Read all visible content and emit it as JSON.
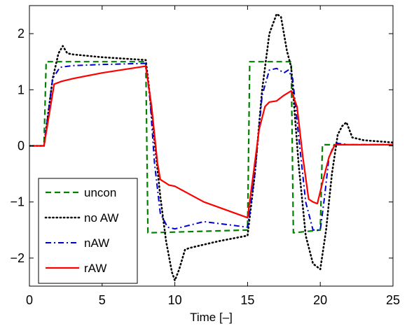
{
  "chart_data": {
    "type": "line",
    "title": "",
    "xlabel": "Time [–]",
    "ylabel": "",
    "xlim": [
      0,
      25
    ],
    "ylim": [
      -2.5,
      2.5
    ],
    "xticks": [
      0,
      5,
      10,
      15,
      20,
      25
    ],
    "yticks": [
      -2,
      -1,
      0,
      1,
      2
    ],
    "xtick_labels": [
      "0",
      "5",
      "10",
      "15",
      "20",
      "25"
    ],
    "ytick_labels": [
      "−2",
      "−1",
      "0",
      "1",
      "2"
    ],
    "grid": false,
    "legend": {
      "position": "bottom-left"
    },
    "series": [
      {
        "name": "uncon",
        "color": "#008000",
        "style": "dashed",
        "x": [
          0,
          1,
          1.15,
          8,
          8.15,
          15,
          15.15,
          18,
          18.15,
          20,
          20.15,
          25
        ],
        "y": [
          0,
          0,
          1.5,
          1.5,
          -1.55,
          -1.5,
          1.5,
          1.5,
          -1.55,
          -1.5,
          0.02,
          0.02
        ]
      },
      {
        "name": "no AW",
        "color": "#000000",
        "style": "dotted",
        "x": [
          0,
          1.0,
          1.6,
          2.0,
          2.3,
          2.6,
          3,
          5,
          8,
          8.2,
          8.6,
          9.0,
          9.4,
          9.8,
          10.0,
          10.3,
          10.7,
          11.0,
          13,
          15,
          15.5,
          16.0,
          16.5,
          17.0,
          17.3,
          17.7,
          18.0,
          18.5,
          19.0,
          19.5,
          20.0,
          20.4,
          20.8,
          21.2,
          21.5,
          21.8,
          22.2,
          23,
          25
        ],
        "y": [
          0,
          0,
          1.2,
          1.65,
          1.78,
          1.65,
          1.63,
          1.58,
          1.53,
          1.1,
          0.1,
          -0.9,
          -1.7,
          -2.25,
          -2.4,
          -2.2,
          -1.85,
          -1.82,
          -1.7,
          -1.6,
          -0.5,
          1.0,
          2.0,
          2.35,
          2.3,
          1.7,
          1.4,
          -0.3,
          -1.6,
          -2.1,
          -2.2,
          -1.5,
          -0.5,
          0.2,
          0.35,
          0.42,
          0.15,
          0.1,
          0.06
        ]
      },
      {
        "name": "nAW",
        "color": "#0000cc",
        "style": "dashdot",
        "x": [
          0,
          1.0,
          1.6,
          2.1,
          3,
          5,
          8,
          8.3,
          8.6,
          9.0,
          9.5,
          10.0,
          12,
          15,
          15.5,
          16.0,
          16.5,
          17.0,
          17.5,
          17.8,
          18.1,
          18.5,
          19.0,
          19.5,
          20.0,
          20.3,
          20.6,
          21.0,
          22,
          25
        ],
        "y": [
          0,
          0,
          1.2,
          1.4,
          1.43,
          1.45,
          1.47,
          0.8,
          -0.3,
          -1.2,
          -1.45,
          -1.48,
          -1.35,
          -1.45,
          -0.5,
          0.9,
          1.35,
          1.38,
          1.3,
          1.35,
          1.2,
          0.2,
          -1.0,
          -1.5,
          -1.5,
          -0.9,
          -0.2,
          0.05,
          0.02,
          0.02
        ]
      },
      {
        "name": "rAW",
        "color": "#ff0000",
        "style": "solid",
        "x": [
          0,
          1.0,
          1.7,
          2.2,
          3,
          5,
          8,
          8.4,
          8.8,
          9.0,
          9.3,
          9.6,
          10,
          12,
          15,
          15.4,
          15.8,
          16.2,
          16.5,
          17,
          17.5,
          18.0,
          18.4,
          18.8,
          19.2,
          19.5,
          19.8,
          20.2,
          20.6,
          21.0,
          22,
          25
        ],
        "y": [
          0,
          0,
          1.1,
          1.15,
          1.2,
          1.3,
          1.42,
          0.7,
          -0.3,
          -0.6,
          -0.65,
          -0.7,
          -0.72,
          -1.0,
          -1.28,
          -0.5,
          0.3,
          0.7,
          0.78,
          0.8,
          0.9,
          0.98,
          0.7,
          -0.2,
          -0.95,
          -1.0,
          -1.03,
          -0.6,
          -0.2,
          0.02,
          0.02,
          0.02
        ]
      }
    ]
  }
}
